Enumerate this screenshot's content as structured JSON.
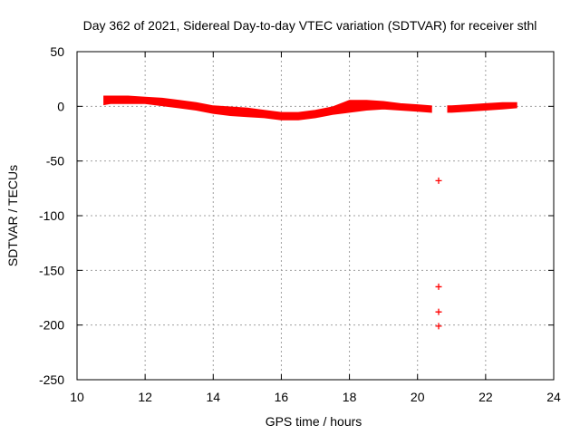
{
  "chart_data": {
    "type": "scatter",
    "title": "Day 362 of 2021, Sidereal Day-to-day VTEC variation (SDTVAR) for receiver sthl",
    "xlabel": "GPS time / hours",
    "ylabel": "SDTVAR / TECUs",
    "xlim": [
      10,
      24
    ],
    "ylim": [
      -250,
      50
    ],
    "xticks": [
      10,
      12,
      14,
      16,
      18,
      20,
      22,
      24
    ],
    "yticks": [
      50,
      0,
      -50,
      -100,
      -150,
      -200,
      -250
    ],
    "grid": true,
    "marker": "+",
    "marker_color": "#ff0000",
    "series": [
      {
        "band_upper": [
          [
            10.8,
            9
          ],
          [
            11.0,
            9
          ],
          [
            11.5,
            9
          ],
          [
            12.0,
            8
          ],
          [
            12.5,
            7
          ],
          [
            13.0,
            5
          ],
          [
            13.5,
            3
          ],
          [
            14.0,
            0
          ],
          [
            14.5,
            -1
          ],
          [
            15.0,
            -2
          ],
          [
            15.5,
            -4
          ],
          [
            16.0,
            -6
          ],
          [
            16.5,
            -6
          ],
          [
            17.0,
            -4
          ],
          [
            17.5,
            -1
          ],
          [
            18.0,
            5
          ],
          [
            18.5,
            5
          ],
          [
            19.0,
            4
          ],
          [
            19.5,
            2
          ],
          [
            20.0,
            1
          ],
          [
            20.4,
            0
          ],
          [
            20.9,
            0
          ],
          [
            21.0,
            0
          ],
          [
            21.5,
            1
          ],
          [
            22.0,
            2
          ],
          [
            22.5,
            3
          ],
          [
            22.9,
            3
          ]
        ],
        "band_lower": [
          [
            10.8,
            2
          ],
          [
            11.0,
            3
          ],
          [
            11.5,
            3
          ],
          [
            12.0,
            3
          ],
          [
            12.5,
            1
          ],
          [
            13.0,
            -1
          ],
          [
            13.5,
            -3
          ],
          [
            14.0,
            -6
          ],
          [
            14.5,
            -8
          ],
          [
            15.0,
            -9
          ],
          [
            15.5,
            -10
          ],
          [
            16.0,
            -12
          ],
          [
            16.5,
            -12
          ],
          [
            17.0,
            -10
          ],
          [
            17.5,
            -7
          ],
          [
            18.0,
            -5
          ],
          [
            18.5,
            -3
          ],
          [
            19.0,
            -2
          ],
          [
            19.5,
            -3
          ],
          [
            20.0,
            -4
          ],
          [
            20.4,
            -5
          ],
          [
            20.9,
            -5
          ],
          [
            21.0,
            -5
          ],
          [
            21.5,
            -4
          ],
          [
            22.0,
            -3
          ],
          [
            22.5,
            -2
          ],
          [
            22.9,
            -1
          ]
        ],
        "gap_hours": [
          20.55,
          20.9
        ],
        "outliers": [
          [
            20.62,
            -68
          ],
          [
            20.62,
            -165
          ],
          [
            20.62,
            -188
          ],
          [
            20.62,
            -201
          ]
        ]
      }
    ]
  }
}
